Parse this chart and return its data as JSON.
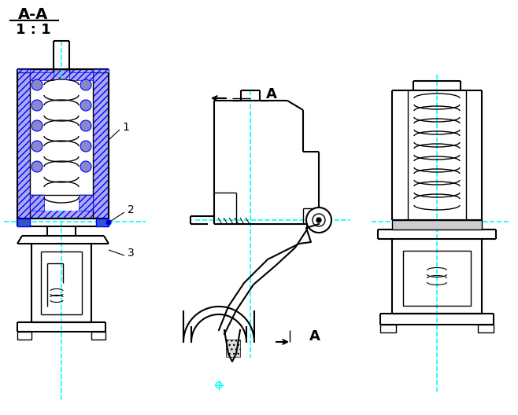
{
  "bg_color": "#ffffff",
  "line_color": "#000000",
  "cyan_color": "#00FFFF",
  "blue_hatch_color": "#0000ff",
  "blue_fill_color": "#aaaaee",
  "section_label": "A-A",
  "section_scale": "1 : 1",
  "label1": "1",
  "label2": "2",
  "label3": "3",
  "arrow_label": "A"
}
